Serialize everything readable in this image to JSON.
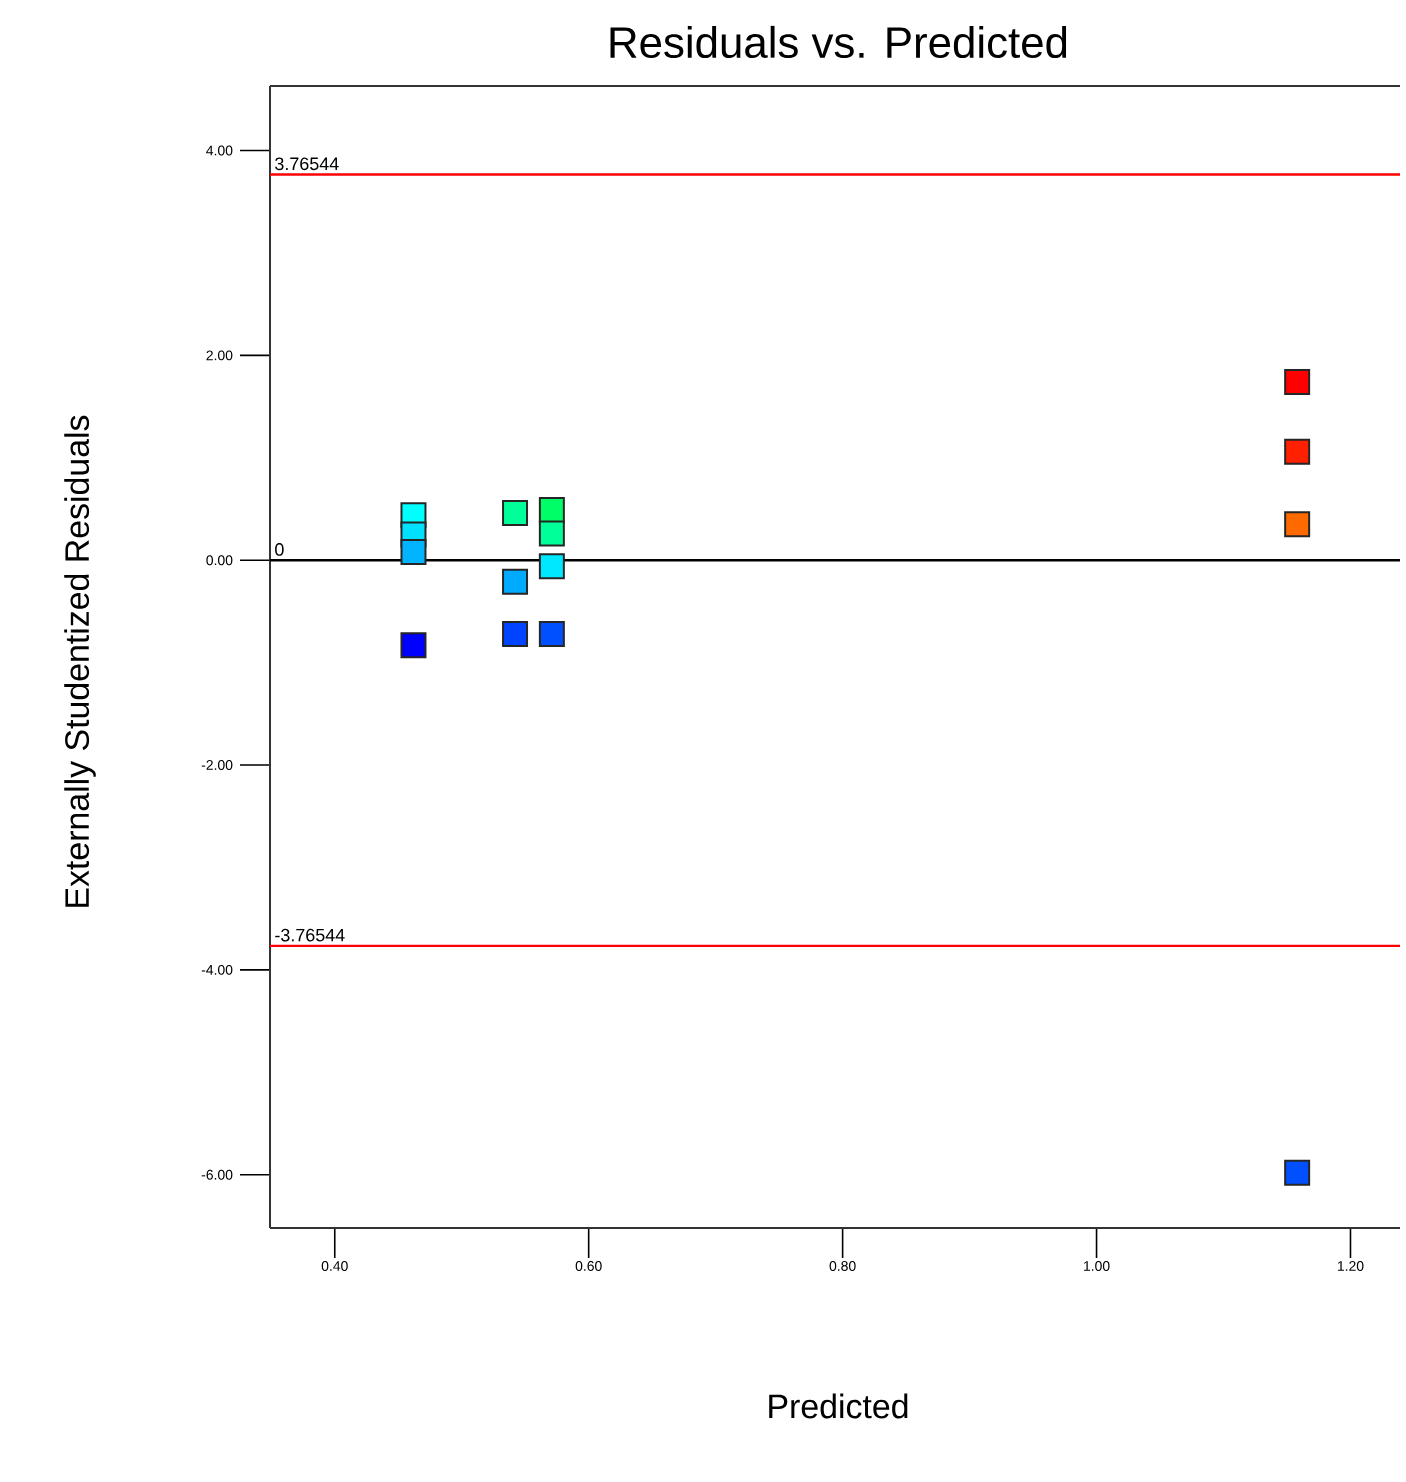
{
  "chart_data": {
    "type": "scatter",
    "title": "Residuals vs. Predicted",
    "xlabel": "Predicted",
    "ylabel": "Externally Studentized Residuals",
    "x": [
      0.462,
      0.462,
      0.462,
      0.462,
      0.542,
      0.542,
      0.542,
      0.571,
      0.571,
      0.571,
      0.571,
      1.158,
      1.158,
      1.158,
      1.158
    ],
    "values": [
      0.44,
      0.25,
      0.08,
      -0.83,
      0.46,
      -0.21,
      -0.72,
      0.49,
      0.26,
      -0.06,
      -0.72,
      1.74,
      1.06,
      0.35,
      -5.98
    ],
    "colors": [
      "#00ffff",
      "#00e0ff",
      "#00b4ff",
      "#0000ff",
      "#00ff99",
      "#00aaff",
      "#0044ff",
      "#00ff66",
      "#00ff99",
      "#00e8ff",
      "#0050ff",
      "#ff0000",
      "#ff2000",
      "#ff6a00",
      "#0050ff"
    ],
    "marker": "square",
    "xlim": [
      0.349,
      1.239
    ],
    "ylim": [
      -6.52,
      4.63
    ],
    "xticks": [
      {
        "value": 0.4,
        "label": "0.40"
      },
      {
        "value": 0.6,
        "label": "0.60"
      },
      {
        "value": 0.8,
        "label": "0.80"
      },
      {
        "value": 1.0,
        "label": "1.00"
      },
      {
        "value": 1.2,
        "label": "1.20"
      }
    ],
    "yticks": [
      {
        "value": -6,
        "label": "-6.00"
      },
      {
        "value": -4,
        "label": "-4.00"
      },
      {
        "value": -2,
        "label": "-2.00"
      },
      {
        "value": 0,
        "label": "0.00"
      },
      {
        "value": 2,
        "label": "2.00"
      },
      {
        "value": 4,
        "label": "4.00"
      }
    ],
    "ref_lines": [
      {
        "axis": "y",
        "value": 3.76544,
        "label": "3.76544",
        "color": "#ff0000"
      },
      {
        "axis": "y",
        "value": 0,
        "label": "0",
        "color": "#000000"
      },
      {
        "axis": "y",
        "value": -3.76544,
        "label": "-3.76544",
        "color": "#ff0000"
      }
    ]
  }
}
